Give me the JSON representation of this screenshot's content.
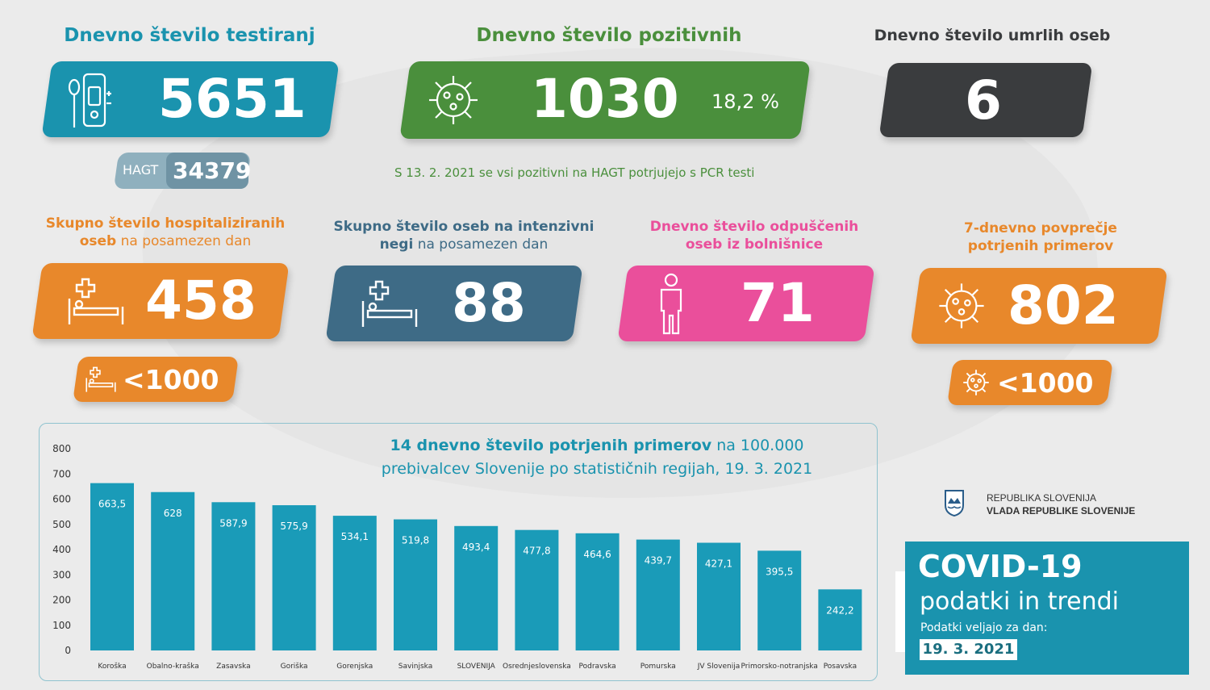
{
  "colors": {
    "blue": "#1a93ae",
    "green": "#4a8f3c",
    "dark": "#3a3c3e",
    "orange": "#e8882b",
    "slate": "#3e6b86",
    "pink": "#ea4f9b",
    "light_slate": "#8fb0be",
    "bar": "#1a9bb8",
    "title_blue": "#1a93ae"
  },
  "tests": {
    "heading": "Dnevno število testiranj",
    "value": "5651",
    "icon": "test-kit-icon",
    "hagt_label": "HAGT",
    "hagt_value": "34379"
  },
  "positives": {
    "heading": "Dnevno število pozitivnih",
    "value": "1030",
    "percent": "18,2 %",
    "icon": "virus-icon",
    "note": "S 13. 2. 2021 se vsi pozitivni na HAGT potrjujejo s PCR testi"
  },
  "deaths": {
    "heading": "Dnevno število umrlih oseb",
    "value": "6"
  },
  "hospitalized": {
    "heading_bold_1": "Skupno število hospitaliziranih",
    "heading_bold_2": "oseb",
    "heading_light": " na posamezen dan",
    "value": "458",
    "icon": "hospital-bed-icon",
    "sub_value": "<1000"
  },
  "icu": {
    "heading_bold_1": "Skupno število oseb na intenzivni",
    "heading_bold_2": "negi",
    "heading_light": " na posamezen dan",
    "value": "88",
    "icon": "hospital-bed-icon"
  },
  "discharged": {
    "heading_1": "Dnevno število odpuščenih",
    "heading_2": "oseb iz bolnišnice",
    "value": "71",
    "icon": "person-icon"
  },
  "avg7": {
    "heading_1": "7-dnevno povprečje",
    "heading_2": "potrjenih primerov",
    "value": "802",
    "icon": "virus-icon",
    "sub_value": "<1000"
  },
  "chart_data": {
    "type": "bar",
    "title_bold": "14 dnevno število potrjenih primerov",
    "title_rest_1": " na 100.000",
    "title_line2": "prebivalcev Slovenije po statističnih regijah, 19. 3. 2021",
    "categories": [
      "Koroška",
      "Obalno-kraška",
      "Zasavska",
      "Goriška",
      "Gorenjska",
      "Savinjska",
      "SLOVENIJA",
      "Osrednjeslovenska",
      "Podravska",
      "Pomurska",
      "JV Slovenija",
      "Primorsko-notranjska",
      "Posavska"
    ],
    "values": [
      663.5,
      628,
      587.9,
      575.9,
      534.1,
      519.8,
      493.4,
      477.8,
      464.6,
      439.7,
      427.1,
      395.5,
      242.2
    ],
    "value_labels": [
      "663,5",
      "628",
      "587,9",
      "575,9",
      "534,1",
      "519,8",
      "493,4",
      "477,8",
      "464,6",
      "439,7",
      "427,1",
      "395,5",
      "242,2"
    ],
    "y_ticks": [
      "0",
      "100",
      "200",
      "300",
      "400",
      "500",
      "600",
      "700",
      "800"
    ],
    "ylim": [
      0,
      800
    ],
    "grid": false
  },
  "government": {
    "line1": "REPUBLIKA SLOVENIJA",
    "line2": "VLADA REPUBLIKE SLOVENIJE",
    "icon": "coat-of-arms-icon"
  },
  "covid_box": {
    "title": "COVID-19",
    "subtitle": "podatki in trendi",
    "valid_label": "Podatki veljajo za dan:",
    "date": "19. 3. 2021"
  }
}
